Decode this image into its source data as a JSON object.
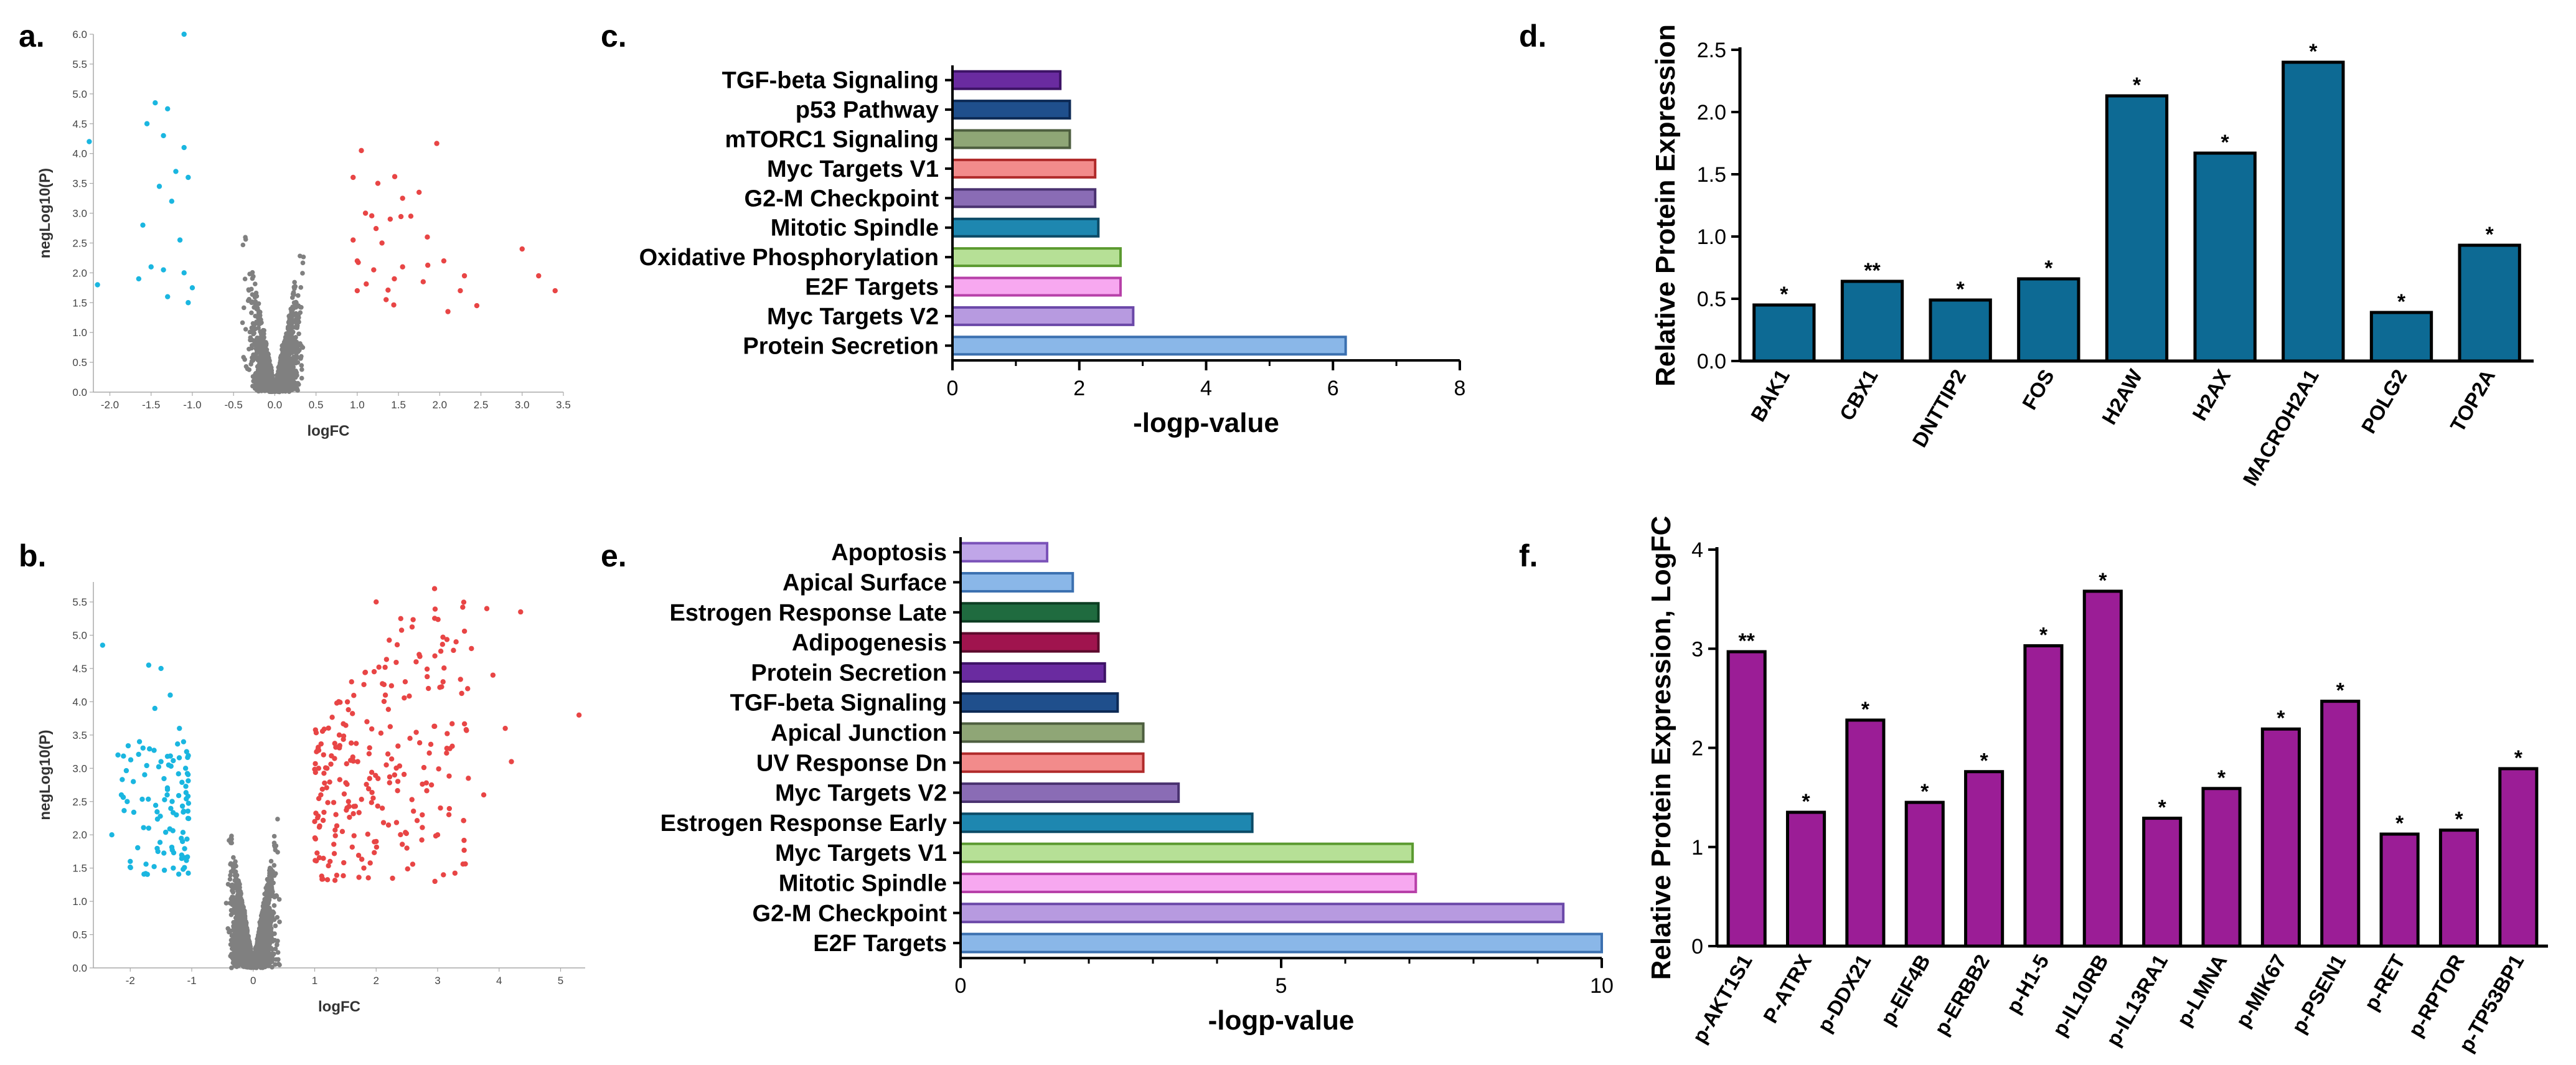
{
  "panel_labels": {
    "a": "a.",
    "b": "b.",
    "c": "c.",
    "d": "d.",
    "e": "e.",
    "f": "f."
  },
  "chart_data": [
    {
      "id": "a",
      "type": "scatter",
      "title": "",
      "xlabel": "logFC",
      "ylabel": "negLog10(P)",
      "xlim": [
        -2.2,
        3.5
      ],
      "ylim": [
        0,
        6.0
      ],
      "xticks": [
        "-2.0",
        "-1.5",
        "-1.0",
        "-0.5",
        "0.0",
        "0.5",
        "1.0",
        "1.5",
        "2.0",
        "2.5",
        "3.0",
        "3.5"
      ],
      "xtick_values": [
        -2.0,
        -1.5,
        -1.0,
        -0.5,
        0.0,
        0.5,
        1.0,
        1.5,
        2.0,
        2.5,
        3.0,
        3.5
      ],
      "yticks": [
        "0.0",
        "0.5",
        "1.0",
        "1.5",
        "2.0",
        "2.5",
        "3.0",
        "3.5",
        "4.0",
        "4.5",
        "5.0",
        "5.5",
        "6.0"
      ],
      "ytick_values": [
        0.0,
        0.5,
        1.0,
        1.5,
        2.0,
        2.5,
        3.0,
        3.5,
        4.0,
        4.5,
        5.0,
        5.5,
        6.0
      ],
      "colors": {
        "down": "#1ab6e0",
        "ns": "#808080",
        "up": "#e84545"
      },
      "series": [
        {
          "name": "down",
          "points": [
            [
              -1.1,
              6.0
            ],
            [
              -1.45,
              4.85
            ],
            [
              -1.3,
              4.75
            ],
            [
              -1.55,
              4.5
            ],
            [
              -1.35,
              4.3
            ],
            [
              -1.1,
              4.1
            ],
            [
              -1.2,
              3.7
            ],
            [
              -1.4,
              3.45
            ],
            [
              -1.05,
              3.6
            ],
            [
              -1.25,
              3.2
            ],
            [
              -1.6,
              2.8
            ],
            [
              -1.15,
              2.55
            ],
            [
              -1.5,
              2.1
            ],
            [
              -1.35,
              2.05
            ],
            [
              -1.65,
              1.9
            ],
            [
              -1.1,
              2.0
            ],
            [
              -2.15,
              1.8
            ],
            [
              -1.0,
              1.75
            ],
            [
              -1.3,
              1.6
            ],
            [
              -1.05,
              1.5
            ],
            [
              -2.25,
              4.2
            ]
          ]
        },
        {
          "name": "up",
          "points": [
            [
              1.05,
              4.05
            ],
            [
              0.95,
              3.6
            ],
            [
              1.25,
              3.5
            ],
            [
              1.55,
              3.25
            ],
            [
              1.75,
              3.35
            ],
            [
              1.1,
              3.0
            ],
            [
              1.4,
              2.9
            ],
            [
              1.65,
              2.95
            ],
            [
              1.85,
              2.6
            ],
            [
              0.95,
              2.55
            ],
            [
              1.3,
              2.5
            ],
            [
              1.0,
              2.2
            ],
            [
              1.55,
              2.1
            ],
            [
              1.2,
              2.05
            ],
            [
              2.05,
              2.2
            ],
            [
              2.3,
              1.95
            ],
            [
              1.45,
              1.9
            ],
            [
              1.8,
              1.85
            ],
            [
              2.25,
              1.7
            ],
            [
              1.0,
              1.7
            ],
            [
              2.45,
              1.45
            ],
            [
              1.35,
              1.55
            ],
            [
              3.0,
              2.4
            ],
            [
              3.2,
              1.95
            ],
            [
              3.4,
              1.7
            ],
            [
              2.1,
              1.35
            ]
          ]
        }
      ]
    },
    {
      "id": "b",
      "type": "scatter",
      "title": "",
      "xlabel": "logFC",
      "ylabel": "negLog10(P)",
      "xlim": [
        -2.6,
        5.4
      ],
      "ylim": [
        0,
        5.8
      ],
      "xticks": [
        "-2",
        "-1",
        "0",
        "1",
        "2",
        "3",
        "4",
        "5"
      ],
      "xtick_values": [
        -2,
        -1,
        0,
        1,
        2,
        3,
        4,
        5
      ],
      "yticks": [
        "0.0",
        "0.5",
        "1.0",
        "1.5",
        "2.0",
        "2.5",
        "3.0",
        "3.5",
        "4.0",
        "4.5",
        "5.0",
        "5.5"
      ],
      "ytick_values": [
        0.0,
        0.5,
        1.0,
        1.5,
        2.0,
        2.5,
        3.0,
        3.5,
        4.0,
        4.5,
        5.0,
        5.5
      ],
      "colors": {
        "down": "#1ab6e0",
        "ns": "#808080",
        "up": "#e84545"
      },
      "series": [
        {
          "name": "down",
          "points": [
            [
              -2.45,
              4.85
            ],
            [
              -1.7,
              4.55
            ],
            [
              -1.5,
              4.5
            ],
            [
              -1.35,
              4.1
            ],
            [
              -1.6,
              3.9
            ],
            [
              -1.2,
              3.6
            ],
            [
              -1.85,
              3.4
            ],
            [
              -2.2,
              3.2
            ],
            [
              -1.5,
              3.1
            ],
            [
              -1.1,
              3.0
            ],
            [
              -1.95,
              2.8
            ],
            [
              -1.4,
              2.6
            ],
            [
              -2.05,
              2.5
            ],
            [
              -1.25,
              2.3
            ],
            [
              -1.7,
              2.1
            ],
            [
              -2.3,
              2.0
            ],
            [
              -1.15,
              1.9
            ],
            [
              -1.55,
              1.75
            ],
            [
              -2.0,
              1.6
            ],
            [
              -1.3,
              1.5
            ]
          ]
        },
        {
          "name": "up",
          "points": [
            [
              2.0,
              5.5
            ],
            [
              2.4,
              5.25
            ],
            [
              2.95,
              5.7
            ],
            [
              3.8,
              5.4
            ],
            [
              4.35,
              5.35
            ],
            [
              5.3,
              3.8
            ],
            [
              3.3,
              4.9
            ],
            [
              2.65,
              4.6
            ],
            [
              3.55,
              4.8
            ],
            [
              1.6,
              4.3
            ],
            [
              2.15,
              4.1
            ],
            [
              2.85,
              4.2
            ],
            [
              3.9,
              4.4
            ],
            [
              4.1,
              3.6
            ],
            [
              1.4,
              3.5
            ],
            [
              1.85,
              3.7
            ],
            [
              2.55,
              3.45
            ],
            [
              3.15,
              3.3
            ],
            [
              4.2,
              3.1
            ],
            [
              1.2,
              3.0
            ],
            [
              1.7,
              3.1
            ],
            [
              2.3,
              2.9
            ],
            [
              2.9,
              2.75
            ],
            [
              3.5,
              2.85
            ],
            [
              1.1,
              2.6
            ],
            [
              1.55,
              2.5
            ],
            [
              2.1,
              2.4
            ],
            [
              2.75,
              2.3
            ],
            [
              1.0,
              2.2
            ],
            [
              1.45,
              2.05
            ],
            [
              2.0,
              1.9
            ],
            [
              2.5,
              1.8
            ],
            [
              1.25,
              1.6
            ],
            [
              1.8,
              1.5
            ],
            [
              3.0,
              2.0
            ],
            [
              3.75,
              2.6
            ]
          ]
        }
      ]
    },
    {
      "id": "c",
      "type": "bar",
      "orientation": "horizontal",
      "categories": [
        "TGF-beta Signaling",
        "p53 Pathway",
        "mTORC1 Signaling",
        "Myc Targets V1",
        "G2-M Checkpoint",
        "Mitotic Spindle",
        "Oxidative Phosphorylation",
        "E2F Targets",
        "Myc Targets V2",
        "Protein Secretion"
      ],
      "values": [
        1.7,
        1.85,
        1.85,
        2.25,
        2.25,
        2.3,
        2.65,
        2.65,
        2.85,
        6.2
      ],
      "colors": [
        [
          "#6a2ba0",
          "#3d1366"
        ],
        [
          "#1f4f8c",
          "#0d2a55"
        ],
        [
          "#8fa676",
          "#4d5e3f"
        ],
        [
          "#f28b8b",
          "#b02a2a"
        ],
        [
          "#8a6cb5",
          "#4a3270"
        ],
        [
          "#1e87b0",
          "#0b4a66"
        ],
        [
          "#b6e096",
          "#5b9a30"
        ],
        [
          "#f7a8f0",
          "#b740a8"
        ],
        [
          "#b79ae0",
          "#6b48a8"
        ],
        [
          "#8ab7e8",
          "#3b70b0"
        ]
      ],
      "title": "",
      "xlabel": "-logp-value",
      "ylabel": "",
      "xlim": [
        0,
        8
      ],
      "xticks": [
        0,
        2,
        4,
        6,
        8
      ]
    },
    {
      "id": "d",
      "type": "bar",
      "orientation": "vertical",
      "categories": [
        "BAK1",
        "CBX1",
        "DNTTIP2",
        "FOS",
        "H2AW",
        "H2AX",
        "MACROH2A1",
        "POLG2",
        "TOP2A"
      ],
      "values": [
        0.45,
        0.64,
        0.49,
        0.66,
        2.13,
        1.67,
        2.4,
        0.39,
        0.93
      ],
      "significance": [
        "*",
        "**",
        "*",
        "*",
        "*",
        "*",
        "*",
        "*",
        "*"
      ],
      "color": "#0d6a94",
      "title": "",
      "xlabel": "",
      "ylabel": "Relative Protein Expression",
      "ylim": [
        0,
        2.5
      ],
      "yticks": [
        "0.0",
        "0.5",
        "1.0",
        "1.5",
        "2.0",
        "2.5"
      ],
      "ytick_values": [
        0.0,
        0.5,
        1.0,
        1.5,
        2.0,
        2.5
      ]
    },
    {
      "id": "e",
      "type": "bar",
      "orientation": "horizontal",
      "categories": [
        "Apoptosis",
        "Apical Surface",
        "Estrogen Response Late",
        "Adipogenesis",
        "Protein Secretion",
        "TGF-beta Signaling",
        "Apical Junction",
        "UV Response Dn",
        "Myc Targets V2",
        "Estrogen Response Early",
        "Myc Targets V1",
        "Mitotic Spindle",
        "G2-M Checkpoint",
        "E2F Targets"
      ],
      "values": [
        1.35,
        1.75,
        2.15,
        2.15,
        2.25,
        2.45,
        2.85,
        2.85,
        3.4,
        4.55,
        7.05,
        7.1,
        9.4,
        10.0
      ],
      "colors": [
        [
          "#c0a6e8",
          "#7a52b8"
        ],
        [
          "#8ab7e8",
          "#3b70b0"
        ],
        [
          "#1f6b3f",
          "#0c3d22"
        ],
        [
          "#a0144e",
          "#5c0a2c"
        ],
        [
          "#6a2ba0",
          "#3d1366"
        ],
        [
          "#1f4f8c",
          "#0d2a55"
        ],
        [
          "#8fa676",
          "#4d5e3f"
        ],
        [
          "#f28b8b",
          "#b02a2a"
        ],
        [
          "#8a6cb5",
          "#4a3270"
        ],
        [
          "#1e87b0",
          "#0b4a66"
        ],
        [
          "#b6e096",
          "#5b9a30"
        ],
        [
          "#f7a8f0",
          "#b740a8"
        ],
        [
          "#b79ae0",
          "#6b48a8"
        ],
        [
          "#8ab7e8",
          "#3b70b0"
        ]
      ],
      "title": "",
      "xlabel": "-logp-value",
      "ylabel": "",
      "xlim": [
        0,
        10
      ],
      "xticks": [
        0,
        5,
        10
      ]
    },
    {
      "id": "f",
      "type": "bar",
      "orientation": "vertical",
      "categories": [
        "p-AKT1S1",
        "P-ATRX",
        "p-DDX21",
        "p-EIF4B",
        "p-ERBB2",
        "p-H1-5",
        "p-IL10RB",
        "p-IL13RA1",
        "p-LMNA",
        "p-MIK67",
        "p-PSEN1",
        "p-RET",
        "p-RPTOR",
        "p-TP53BP1"
      ],
      "values": [
        2.97,
        1.35,
        2.28,
        1.45,
        1.76,
        3.03,
        3.58,
        1.29,
        1.59,
        2.19,
        2.47,
        1.13,
        1.17,
        1.79
      ],
      "significance": [
        "**",
        "*",
        "*",
        "*",
        "*",
        "*",
        "*",
        "*",
        "*",
        "*",
        "*",
        "*",
        "*",
        "*"
      ],
      "color": "#9b1d96",
      "title": "",
      "xlabel": "",
      "ylabel": "Relative Protein Expression, LogFC",
      "ylim": [
        0,
        4
      ],
      "yticks": [
        "0",
        "1",
        "2",
        "3",
        "4"
      ],
      "ytick_values": [
        0,
        1,
        2,
        3,
        4
      ]
    }
  ]
}
